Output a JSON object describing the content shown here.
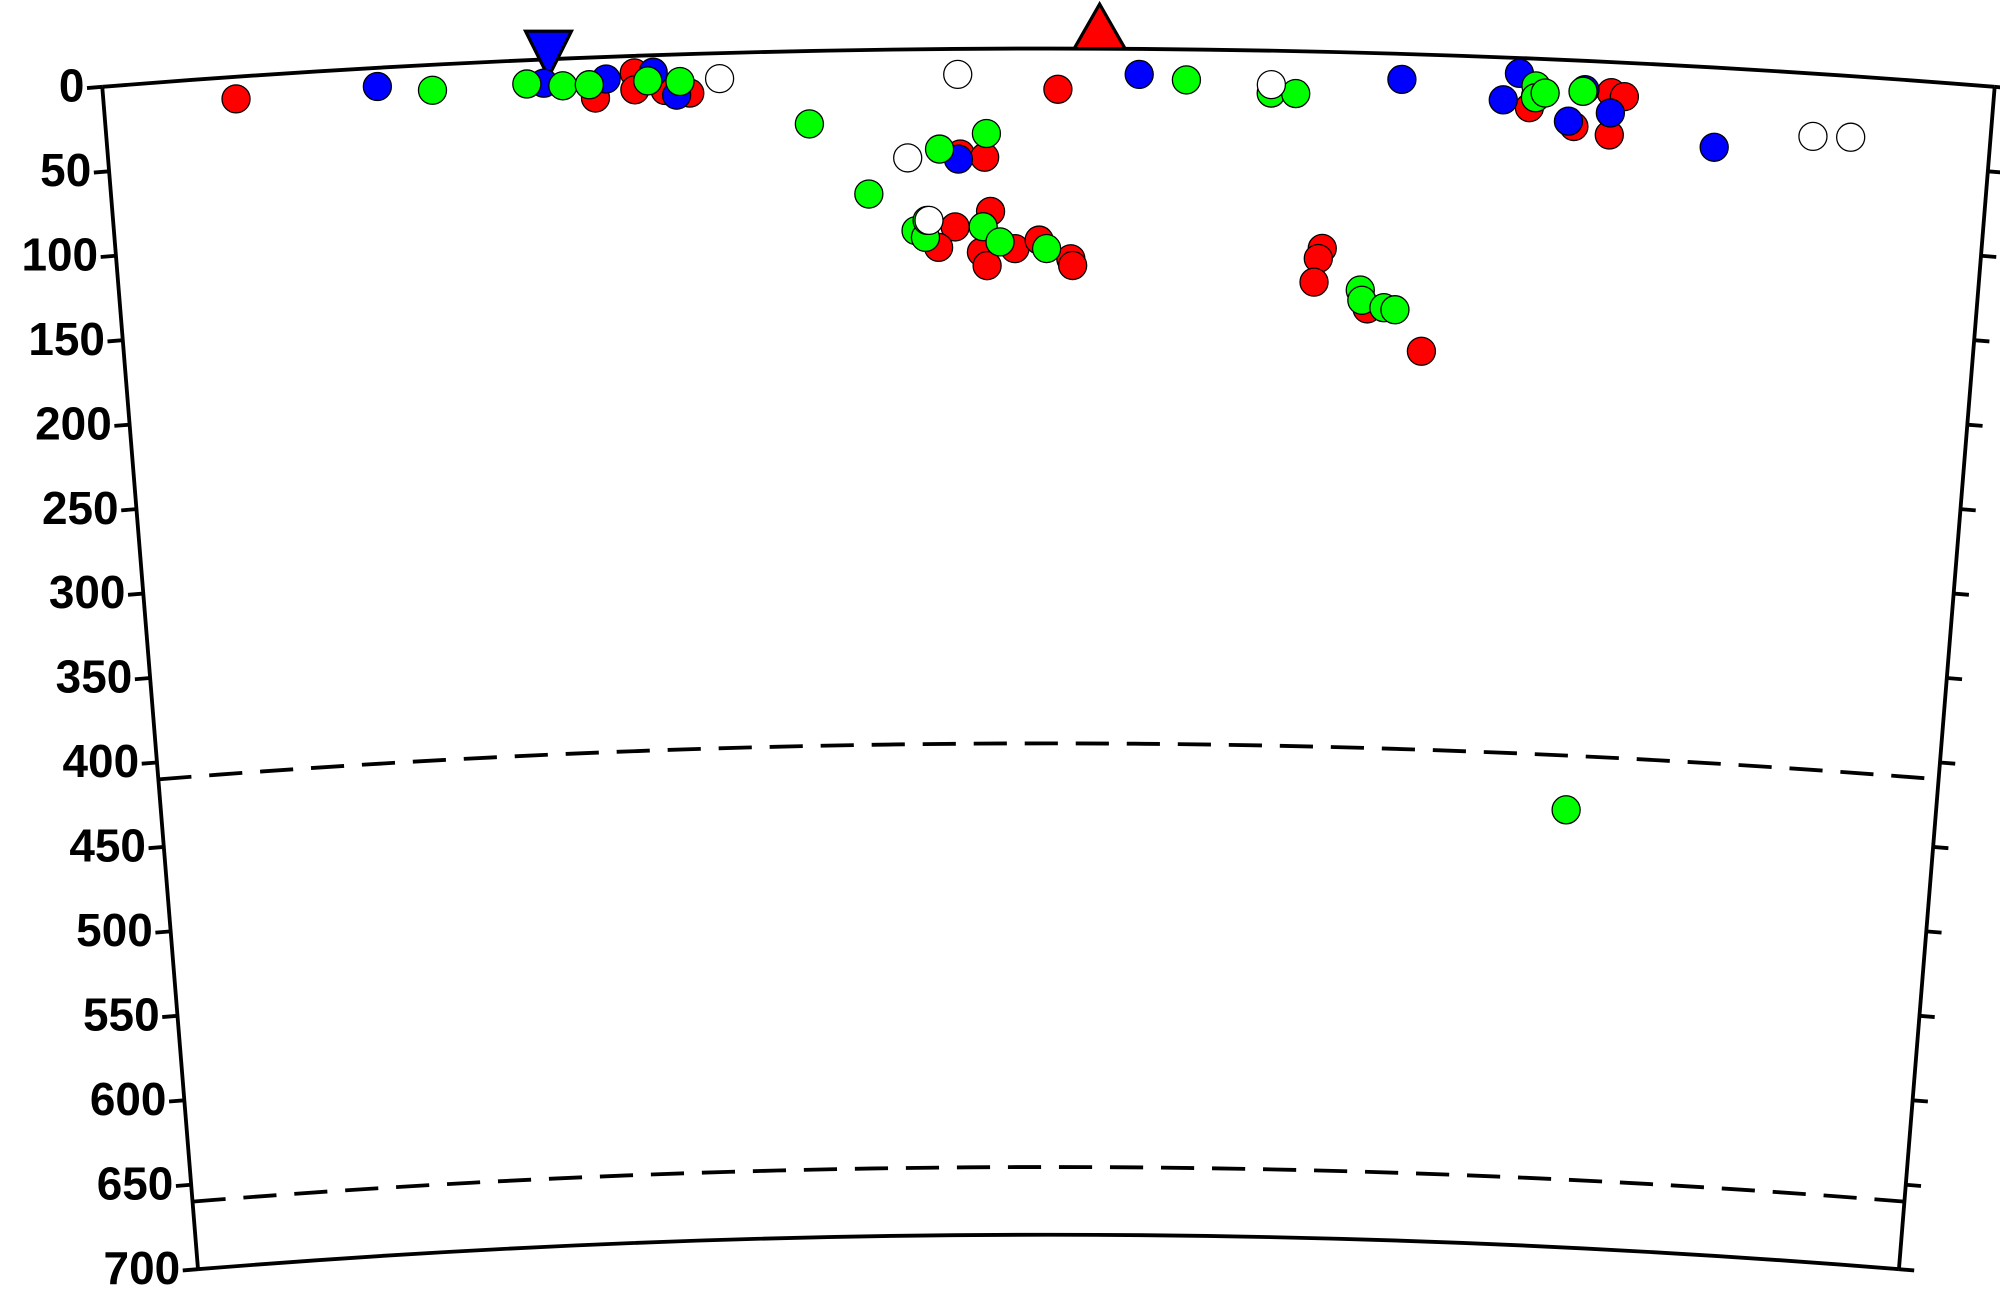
{
  "chart_data": {
    "type": "scatter",
    "ylim": [
      0,
      700
    ],
    "yticks": [
      0,
      50,
      100,
      150,
      200,
      250,
      300,
      350,
      400,
      450,
      500,
      550,
      600,
      650,
      700
    ],
    "xlim": [
      0,
      100
    ],
    "discontinuities": [
      410,
      660
    ],
    "stations": [
      {
        "x": 23.6,
        "color": "#0000ff",
        "shape": "triangle-down"
      },
      {
        "x": 52.7,
        "color": "#ff0000",
        "shape": "triangle-up"
      }
    ],
    "series": [
      {
        "color": "#ff0000",
        "x": [
          7.0,
          26.0,
          28.1,
          28.1,
          29.7,
          31.0,
          45.3,
          46.6,
          45.0,
          46.9,
          46.4,
          46.7,
          48.2,
          49.5,
          51.2,
          51.3,
          50.5,
          44.1,
          64.7,
          64.5,
          64.3,
          67.2,
          70.2,
          75.5,
          77.9,
          79.8,
          79.8,
          80.5
        ],
        "values": [
          13,
          24,
          10,
          20,
          21,
          23,
          62,
          64,
          105,
          96,
          120,
          128,
          118,
          113,
          124,
          128,
          24,
          117,
          116,
          122,
          136,
          151,
          175,
          29,
          39,
          43,
          18,
          20
        ]
      },
      {
        "color": "#0000ff",
        "x": [
          14.5,
          23.3,
          26.6,
          29.1,
          30.3,
          45.2,
          54.8,
          68.7,
          74.9,
          74.1,
          75.8,
          77.6,
          79.8,
          78.4,
          85.4
        ],
        "values": [
          11,
          14,
          13,
          10,
          24,
          65,
          15,
          15,
          9,
          25,
          22,
          36,
          30,
          17,
          47
        ]
      },
      {
        "color": "#00ff00",
        "x": [
          17.4,
          22.4,
          24.3,
          25.7,
          28.8,
          30.5,
          37.3,
          40.4,
          44.2,
          46.7,
          42.9,
          43.4,
          43.5,
          46.5,
          47.4,
          49.9,
          57.3,
          61.8,
          63.1,
          66.8,
          66.9,
          68.1,
          68.7,
          75.8,
          75.8,
          76.3,
          78.3,
          79.2
        ],
        "values": [
          15,
          14,
          16,
          16,
          15,
          16,
          43,
          85,
          59,
          50,
          107,
          111,
          101,
          105,
          114,
          118,
          18,
          25,
          25,
          140,
          146,
          150,
          151,
          16,
          23,
          20,
          18,
          442
        ]
      },
      {
        "color": "#ffffff",
        "x": [
          32.6,
          45.2,
          42.5,
          43.6,
          61.8,
          90.6,
          92.6
        ],
        "values": [
          15,
          15,
          64,
          101,
          20,
          37,
          36
        ]
      }
    ]
  }
}
